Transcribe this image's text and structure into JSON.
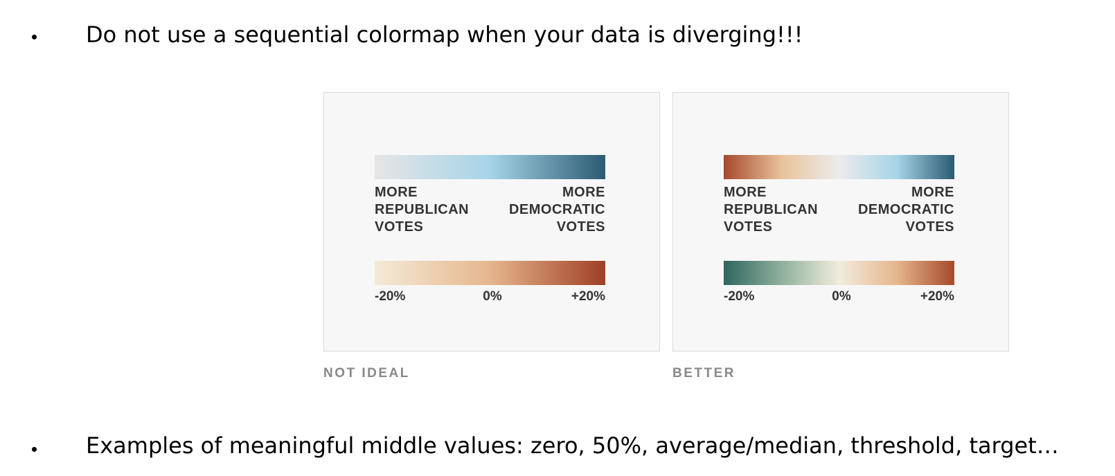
{
  "bullets": [
    {
      "text": "Do not use a sequential colormap when your data is diverging!!!"
    },
    {
      "text": "Examples of meaningful middle values: zero, 50%, average/median, threshold, target…"
    }
  ],
  "panels": [
    {
      "caption": "NOT IDEAL",
      "legend_top": {
        "left_label": "MORE\nREPUBLICAN\nVOTES",
        "right_label": "MORE\nDEMOCRATIC\nVOTES",
        "colors": [
          "#e6e6e6",
          "#a6d4e8",
          "#2b5b72"
        ]
      },
      "legend_bottom": {
        "ticks": [
          "-20%",
          "0%",
          "+20%"
        ],
        "colors": [
          "#f4ead7",
          "#e6b68d",
          "#9f3f26"
        ]
      }
    },
    {
      "caption": "BETTER",
      "legend_top": {
        "left_label": "MORE\nREPUBLICAN\nVOTES",
        "right_label": "MORE\nDEMOCRATIC\nVOTES",
        "colors": [
          "#a6492c",
          "#e9c29b",
          "#ececec",
          "#a6d4e8",
          "#2b5b72"
        ]
      },
      "legend_bottom": {
        "ticks": [
          "-20%",
          "0%",
          "+20%"
        ],
        "colors": [
          "#2f6661",
          "#8fb09c",
          "#f2ecdd",
          "#e6b68d",
          "#a6492c"
        ]
      }
    }
  ]
}
